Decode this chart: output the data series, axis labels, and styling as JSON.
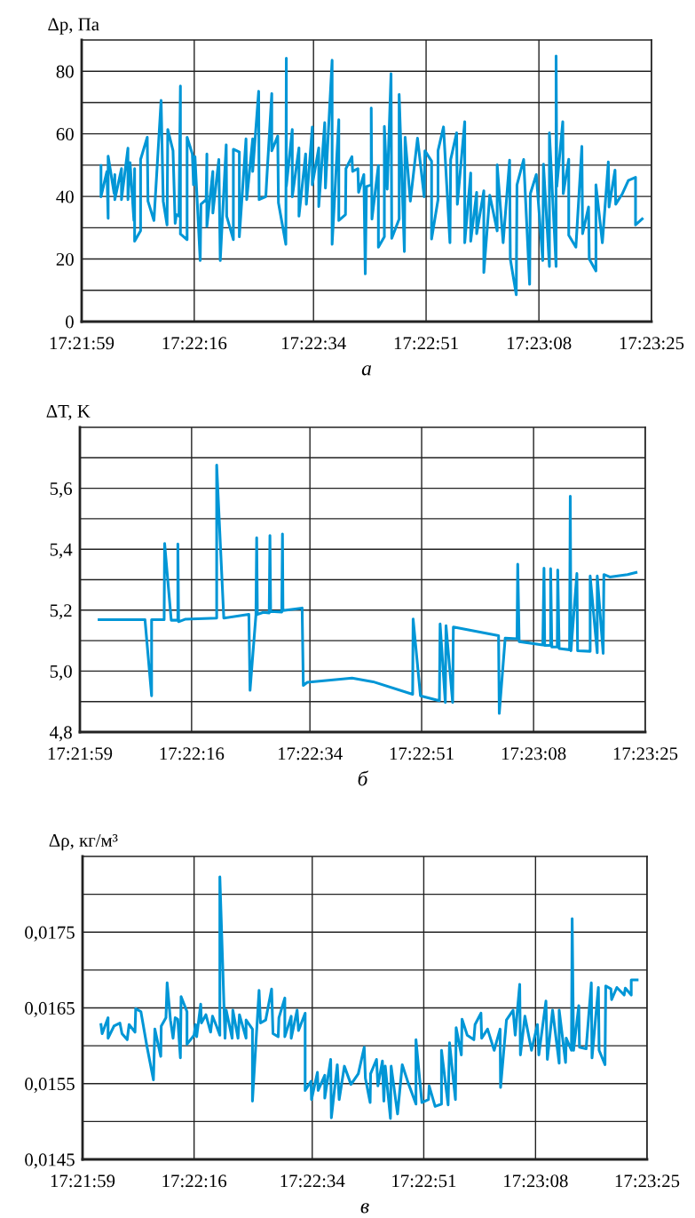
{
  "chart_data": [
    {
      "type": "line",
      "ylabel": "Δp, Па",
      "xlabel": "а",
      "grid": true,
      "xlim": [
        17.36639,
        17.39028
      ],
      "xticks": [
        {
          "value": 17.36639,
          "label": "17:21:59"
        },
        {
          "value": 17.37111,
          "label": "17:22:16"
        },
        {
          "value": 17.37611,
          "label": "17:22:34"
        },
        {
          "value": 17.38083,
          "label": "17:22:51"
        },
        {
          "value": 17.38556,
          "label": "17:23:08"
        },
        {
          "value": 17.39028,
          "label": "17:23:25"
        }
      ],
      "ylim": [
        0,
        90
      ],
      "yticks": [
        0,
        {
          "value": 10,
          "label": null
        },
        20,
        {
          "value": 30,
          "label": null
        },
        40,
        {
          "value": 50,
          "label": null
        },
        60,
        {
          "value": 70,
          "label": null
        },
        80
      ],
      "x": [
        17.3672,
        17.3672,
        17.36745,
        17.3675,
        17.3675,
        17.36775,
        17.36778,
        17.36778,
        17.36806,
        17.36806,
        17.36833,
        17.36833,
        17.36842,
        17.36858,
        17.36861,
        17.36861,
        17.36886,
        17.36886,
        17.36914,
        17.36917,
        17.36942,
        17.36972,
        17.36981,
        17.36997,
        17.37,
        17.37022,
        17.37031,
        17.37036,
        17.37047,
        17.37053,
        17.37053,
        17.37081,
        17.37081,
        17.37103,
        17.37108,
        17.37114,
        17.37136,
        17.37139,
        17.37161,
        17.37164,
        17.37164,
        17.37189,
        17.37189,
        17.37214,
        17.3722,
        17.37245,
        17.37247,
        17.37275,
        17.37275,
        17.373,
        17.373,
        17.37328,
        17.37331,
        17.37356,
        17.37356,
        17.37381,
        17.37383,
        17.37411,
        17.37414,
        17.37436,
        17.37436,
        17.37461,
        17.37464,
        17.37495,
        17.37497,
        17.37497,
        17.37522,
        17.37522,
        17.3755,
        17.3755,
        17.37578,
        17.37581,
        17.37606,
        17.37606,
        17.37633,
        17.37633,
        17.37658,
        17.37661,
        17.37689,
        17.37689,
        17.37717,
        17.37717,
        17.37745,
        17.37747,
        17.37772,
        17.37775,
        17.37797,
        17.378,
        17.37822,
        17.37828,
        17.37833,
        17.37853,
        17.37853,
        17.37856,
        17.37883,
        17.37883,
        17.37908,
        17.37908,
        17.3792,
        17.37936,
        17.37939,
        17.3797,
        17.3797,
        17.37992,
        17.37995,
        17.38017,
        17.38047,
        17.38075,
        17.38078,
        17.38106,
        17.38106,
        17.38133,
        17.38133,
        17.38156,
        17.38183,
        17.38186,
        17.38211,
        17.38214,
        17.38245,
        17.38245,
        17.3827,
        17.3827,
        17.38295,
        17.38295,
        17.38325,
        17.38325,
        17.3835,
        17.38381,
        17.38381,
        17.38406,
        17.38433,
        17.38436,
        17.38461,
        17.38464,
        17.38492,
        17.38517,
        17.3852,
        17.38545,
        17.38572,
        17.38575,
        17.386,
        17.386,
        17.38628,
        17.38628,
        17.38631,
        17.38656,
        17.38658,
        17.38681,
        17.38681,
        17.38711,
        17.38736,
        17.38739,
        17.38764,
        17.38767,
        17.38795,
        17.38795,
        17.38822,
        17.38847,
        17.3885,
        17.38875,
        17.38878,
        17.38906,
        17.38931,
        17.38961,
        17.38961,
        17.38989
      ],
      "series": [
        {
          "color": "#0096d6",
          "values": [
            49.9,
            39.9,
            48,
            33,
            52.9,
            41,
            47,
            39,
            48.9,
            39,
            55.4,
            39,
            50.8,
            32.3,
            48.9,
            25.7,
            29,
            51.8,
            58.9,
            38.5,
            32.3,
            70.7,
            38.5,
            30.9,
            61.4,
            54.6,
            31.4,
            34.2,
            33.7,
            75.3,
            28,
            26.2,
            58.9,
            53.6,
            43.7,
            52.7,
            19.5,
            37.5,
            39,
            53.6,
            30.4,
            48,
            34.7,
            51.8,
            19.5,
            56.5,
            33.7,
            26.2,
            55.1,
            54.2,
            27.1,
            58.4,
            39,
            58.4,
            48,
            73.6,
            39,
            39.9,
            44.2,
            72.9,
            54.6,
            59.3,
            38,
            24.7,
            84.2,
            43.2,
            61.4,
            39.9,
            55.5,
            33.7,
            53.6,
            37.5,
            62.2,
            43.7,
            55.5,
            36.8,
            63.6,
            42.7,
            83.5,
            24.7,
            64.5,
            32.3,
            34.2,
            48.9,
            52.7,
            48,
            48.9,
            41.3,
            47,
            15.3,
            43.2,
            43.7,
            68.3,
            32.8,
            49.9,
            23.8,
            27.1,
            62.4,
            42.3,
            79.2,
            26.6,
            32.8,
            72.6,
            22.4,
            58.9,
            38.5,
            58.6,
            39.9,
            54.6,
            51.3,
            26.4,
            39,
            54.6,
            62.2,
            25.2,
            51.8,
            60.3,
            37.5,
            63.9,
            25.2,
            47.5,
            25.7,
            41.3,
            28.1,
            41.8,
            15.7,
            40.4,
            29,
            50.1,
            25.2,
            51.6,
            20,
            8.6,
            43.7,
            51.8,
            11.9,
            40.9,
            47,
            19.5,
            50.3,
            17.6,
            60.3,
            17.6,
            84.9,
            43.2,
            63.9,
            40.9,
            51.9,
            27.6,
            23.8,
            56,
            28.1,
            36.6,
            20,
            16.2,
            43.7,
            25.2,
            51,
            36.6,
            48.4,
            37.5,
            40.9,
            45.1,
            46.1,
            30.9,
            32.8
          ]
        }
      ]
    },
    {
      "type": "line",
      "ylabel": "ΔT, K",
      "xlabel": "б",
      "grid": true,
      "xlim": [
        17.36639,
        17.39028
      ],
      "xticks": [
        {
          "value": 17.36639,
          "label": "17:21:59"
        },
        {
          "value": 17.37111,
          "label": "17:22:16"
        },
        {
          "value": 17.37611,
          "label": "17:22:34"
        },
        {
          "value": 17.38083,
          "label": "17:22:51"
        },
        {
          "value": 17.38556,
          "label": "17:23:08"
        },
        {
          "value": 17.39028,
          "label": "17:23:25"
        }
      ],
      "ylim": [
        4.8,
        5.8
      ],
      "yticks": [
        {
          "value": 4.8,
          "label": "4,8"
        },
        {
          "value": 4.9,
          "label": null
        },
        {
          "value": 5.0,
          "label": "5,0"
        },
        {
          "value": 5.1,
          "label": null
        },
        {
          "value": 5.2,
          "label": "5,2"
        },
        {
          "value": 5.3,
          "label": null
        },
        {
          "value": 5.4,
          "label": "5,4"
        },
        {
          "value": 5.5,
          "label": null
        },
        {
          "value": 5.6,
          "label": "5,6"
        },
        {
          "value": 5.7,
          "label": null
        }
      ],
      "x": [
        17.3672,
        17.36914,
        17.36942,
        17.36942,
        17.36995,
        17.36997,
        17.37025,
        17.37053,
        17.37053,
        17.37056,
        17.37083,
        17.37217,
        17.37217,
        17.37247,
        17.37353,
        17.37358,
        17.37383,
        17.37386,
        17.37389,
        17.37414,
        17.37439,
        17.37442,
        17.37445,
        17.37492,
        17.37495,
        17.37497,
        17.37578,
        17.37583,
        17.376,
        17.37789,
        17.37878,
        17.38045,
        17.38047,
        17.38078,
        17.38158,
        17.38161,
        17.38183,
        17.38186,
        17.38214,
        17.38217,
        17.38408,
        17.38411,
        17.38436,
        17.38486,
        17.38489,
        17.38495,
        17.38595,
        17.386,
        17.38603,
        17.38628,
        17.38628,
        17.38633,
        17.38656,
        17.38658,
        17.38664,
        17.38708,
        17.38711,
        17.38714,
        17.38739,
        17.38742,
        17.38795,
        17.38795,
        17.38825,
        17.38825,
        17.3885,
        17.38853,
        17.38878,
        17.38953,
        17.38989
      ],
      "series": [
        {
          "color": "#0096d6",
          "values": [
            5.169,
            5.169,
            4.919,
            5.169,
            5.169,
            5.419,
            5.167,
            5.167,
            5.417,
            5.162,
            5.17,
            5.174,
            5.676,
            5.174,
            5.186,
            4.937,
            5.186,
            5.438,
            5.186,
            5.193,
            5.191,
            5.445,
            5.196,
            5.194,
            5.45,
            5.199,
            5.207,
            4.953,
            4.963,
            4.977,
            4.965,
            4.924,
            5.171,
            4.919,
            4.903,
            5.155,
            4.897,
            5.149,
            4.897,
            5.145,
            5.116,
            4.861,
            5.108,
            5.106,
            5.351,
            5.097,
            5.086,
            5.338,
            5.084,
            5.084,
            5.336,
            5.079,
            5.079,
            5.332,
            5.074,
            5.07,
            5.574,
            5.067,
            5.32,
            5.067,
            5.065,
            5.312,
            5.06,
            5.312,
            5.058,
            5.317,
            5.309,
            5.317,
            5.324
          ]
        }
      ]
    },
    {
      "type": "line",
      "ylabel": "Δρ, кг/м³",
      "xlabel": "в",
      "grid": true,
      "xlim": [
        17.36639,
        17.39028
      ],
      "xticks": [
        {
          "value": 17.36639,
          "label": "17:21:59"
        },
        {
          "value": 17.37111,
          "label": "17:22:16"
        },
        {
          "value": 17.37611,
          "label": "17:22:34"
        },
        {
          "value": 17.38083,
          "label": "17:22:51"
        },
        {
          "value": 17.38556,
          "label": "17:23:08"
        },
        {
          "value": 17.39028,
          "label": "17:23:25"
        }
      ],
      "ylim": [
        0.0145,
        0.0185
      ],
      "yticks": [
        {
          "value": 0.0145,
          "label": "0,0145"
        },
        {
          "value": 0.015,
          "label": null
        },
        {
          "value": 0.0155,
          "label": "0,0155"
        },
        {
          "value": 0.016,
          "label": null
        },
        {
          "value": 0.0165,
          "label": "0,0165"
        },
        {
          "value": 0.017,
          "label": null
        },
        {
          "value": 0.0175,
          "label": "0,0175"
        },
        {
          "value": 0.018,
          "label": null
        }
      ],
      "x": [
        17.36717,
        17.36722,
        17.36747,
        17.36747,
        17.36772,
        17.36797,
        17.36806,
        17.36828,
        17.36836,
        17.36861,
        17.36864,
        17.36886,
        17.36911,
        17.36939,
        17.36945,
        17.3697,
        17.36972,
        17.36992,
        17.36997,
        17.37011,
        17.37022,
        17.37031,
        17.37042,
        17.37053,
        17.37056,
        17.37081,
        17.37081,
        17.37111,
        17.37117,
        17.37122,
        17.37139,
        17.37142,
        17.37161,
        17.37181,
        17.37189,
        17.37206,
        17.3722,
        17.3722,
        17.37242,
        17.37247,
        17.37272,
        17.37275,
        17.37297,
        17.37303,
        17.37331,
        17.37331,
        17.37358,
        17.37358,
        17.37386,
        17.37392,
        17.37414,
        17.37439,
        17.37445,
        17.37467,
        17.3747,
        17.37495,
        17.37495,
        17.37522,
        17.37522,
        17.37547,
        17.37553,
        17.37581,
        17.37581,
        17.37606,
        17.37608,
        17.37633,
        17.37636,
        17.37664,
        17.37664,
        17.37689,
        17.37692,
        17.37717,
        17.37725,
        17.37747,
        17.37775,
        17.37806,
        17.37831,
        17.37836,
        17.37856,
        17.37858,
        17.37883,
        17.37889,
        17.37908,
        17.37914,
        17.3792,
        17.37942,
        17.37945,
        17.37972,
        17.37992,
        17.38017,
        17.3805,
        17.3805,
        17.38075,
        17.38103,
        17.38106,
        17.38131,
        17.38158,
        17.38158,
        17.38186,
        17.38192,
        17.38217,
        17.3822,
        17.38242,
        17.38245,
        17.38267,
        17.38295,
        17.383,
        17.38325,
        17.38328,
        17.38353,
        17.38381,
        17.38406,
        17.38408,
        17.38433,
        17.38461,
        17.3847,
        17.38489,
        17.38492,
        17.38511,
        17.38539,
        17.38564,
        17.3857,
        17.386,
        17.38606,
        17.38628,
        17.38656,
        17.38656,
        17.38683,
        17.38686,
        17.38708,
        17.38711,
        17.38717,
        17.38739,
        17.38742,
        17.3877,
        17.38792,
        17.38795,
        17.38822,
        17.38825,
        17.3885,
        17.38853,
        17.38875,
        17.38878,
        17.389,
        17.38931,
        17.38936,
        17.38961,
        17.38961,
        17.38986
      ],
      "series": [
        {
          "color": "#0096d6",
          "values": [
            0.01628,
            0.01616,
            0.01637,
            0.0161,
            0.01626,
            0.0163,
            0.01616,
            0.01608,
            0.01628,
            0.01618,
            0.01649,
            0.01645,
            0.016,
            0.01555,
            0.01622,
            0.01586,
            0.01626,
            0.01637,
            0.01683,
            0.01634,
            0.0161,
            0.01637,
            0.01635,
            0.01584,
            0.01665,
            0.01645,
            0.01602,
            0.01614,
            0.01628,
            0.01612,
            0.01655,
            0.0163,
            0.01641,
            0.01618,
            0.01639,
            0.01626,
            0.01614,
            0.01823,
            0.0161,
            0.01647,
            0.0161,
            0.01647,
            0.0161,
            0.01641,
            0.0161,
            0.01634,
            0.01622,
            0.01527,
            0.01673,
            0.0163,
            0.01634,
            0.01675,
            0.01616,
            0.01612,
            0.01637,
            0.01663,
            0.01612,
            0.01639,
            0.0161,
            0.01647,
            0.0162,
            0.01643,
            0.01541,
            0.01553,
            0.01529,
            0.01565,
            0.01541,
            0.01561,
            0.01531,
            0.01582,
            0.01505,
            0.01575,
            0.01529,
            0.01573,
            0.01549,
            0.01563,
            0.01598,
            0.01557,
            0.01525,
            0.01563,
            0.01582,
            0.01547,
            0.0158,
            0.01527,
            0.01573,
            0.01504,
            0.01573,
            0.0151,
            0.01575,
            0.01551,
            0.01523,
            0.01608,
            0.01525,
            0.01529,
            0.01547,
            0.0152,
            0.01523,
            0.01594,
            0.01522,
            0.01604,
            0.01529,
            0.01624,
            0.01588,
            0.01635,
            0.01614,
            0.01608,
            0.01628,
            0.01643,
            0.0161,
            0.01622,
            0.01594,
            0.01622,
            0.01545,
            0.01634,
            0.01647,
            0.01614,
            0.01681,
            0.01588,
            0.01639,
            0.01594,
            0.01628,
            0.01588,
            0.01659,
            0.01582,
            0.01647,
            0.01577,
            0.01647,
            0.01578,
            0.0161,
            0.01594,
            0.01768,
            0.01594,
            0.01653,
            0.01598,
            0.01596,
            0.01683,
            0.01584,
            0.01677,
            0.01594,
            0.01575,
            0.01679,
            0.01675,
            0.01661,
            0.01677,
            0.01667,
            0.01676,
            0.01667,
            0.01687,
            0.01687
          ]
        }
      ]
    }
  ]
}
